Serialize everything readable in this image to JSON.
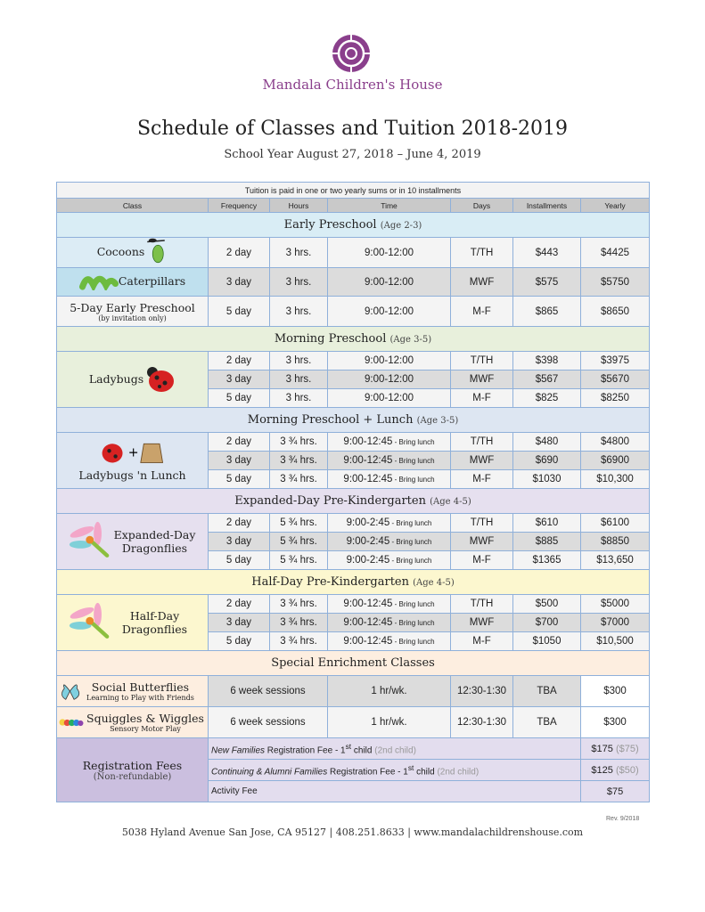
{
  "header": {
    "brand": "Mandala Children's House",
    "title": "Schedule of Classes and Tuition 2018-2019",
    "subtitle": "School Year August 27, 2018 – June 4, 2019",
    "brand_color": "#8a3f8c"
  },
  "table": {
    "caption": "Tuition is paid in one or two yearly sums or in 10 installments",
    "columns": [
      "Class",
      "Frequency",
      "Hours",
      "Time",
      "Days",
      "Installments",
      "Yearly"
    ],
    "sections": [
      {
        "title": "Early Preschool",
        "age": "(Age 2-3)",
        "color": "#d9edf5",
        "classes": [
          {
            "name": "Cocoons",
            "icon": "cocoon-icon",
            "color": "#dcecf5",
            "rows": [
              [
                "2 day",
                "3 hrs.",
                "9:00-12:00",
                "T/TH",
                "$443",
                "$4425"
              ]
            ]
          },
          {
            "name": "Caterpillars",
            "icon": "caterpillar-icon",
            "color": "#bfe0ee",
            "rows": [
              [
                "3 day",
                "3 hrs.",
                "9:00-12:00",
                "MWF",
                "$575",
                "$5750"
              ]
            ]
          },
          {
            "name": "5-Day Early Preschool",
            "note": "(by invitation only)",
            "color": "#f4f4f4",
            "rows": [
              [
                "5 day",
                "3 hrs.",
                "9:00-12:00",
                "M-F",
                "$865",
                "$8650"
              ]
            ]
          }
        ]
      },
      {
        "title": "Morning Preschool",
        "age": "(Age 3-5)",
        "color": "#e8f0dc",
        "classes": [
          {
            "name": "Ladybugs",
            "icon": "ladybug-icon",
            "color": "#e8f0dc",
            "rows": [
              [
                "2 day",
                "3 hrs.",
                "9:00-12:00",
                "T/TH",
                "$398",
                "$3975"
              ],
              [
                "3 day",
                "3 hrs.",
                "9:00-12:00",
                "MWF",
                "$567",
                "$5670"
              ],
              [
                "5 day",
                "3 hrs.",
                "9:00-12:00",
                "M-F",
                "$825",
                "$8250"
              ]
            ]
          }
        ]
      },
      {
        "title": "Morning Preschool + Lunch",
        "age": "(Age 3-5)",
        "color": "#dde6f2",
        "classes": [
          {
            "name": "Ladybugs 'n Lunch",
            "icon": "ladybug-lunch-icon",
            "color": "#dde6f2",
            "rows": [
              [
                "2 day",
                "3 ¾ hrs.",
                "9:00-12:45",
                "T/TH",
                "$480",
                "$4800"
              ],
              [
                "3 day",
                "3 ¾ hrs.",
                "9:00-12:45",
                "MWF",
                "$690",
                "$6900"
              ],
              [
                "5 day",
                "3 ¾ hrs.",
                "9:00-12:45",
                "M-F",
                "$1030",
                "$10,300"
              ]
            ]
          }
        ]
      },
      {
        "title": "Expanded-Day Pre-Kindergarten",
        "age": "(Age 4-5)",
        "color": "#e6e0ef",
        "classes": [
          {
            "name": "Expanded-Day Dragonflies",
            "icon": "dragonfly-icon",
            "color": "#e6e0ef",
            "rows": [
              [
                "2 day",
                "5 ¾ hrs.",
                "9:00-2:45",
                "T/TH",
                "$610",
                "$6100"
              ],
              [
                "3 day",
                "5 ¾ hrs.",
                "9:00-2:45",
                "MWF",
                "$885",
                "$8850"
              ],
              [
                "5 day",
                "5 ¾ hrs.",
                "9:00-2:45",
                "M-F",
                "$1365",
                "$13,650"
              ]
            ]
          }
        ]
      },
      {
        "title": "Half-Day Pre-Kindergarten",
        "age": "(Age 4-5)",
        "color": "#fcf7cf",
        "classes": [
          {
            "name": "Half-Day Dragonflies",
            "icon": "dragonfly-icon",
            "color": "#fcf7cf",
            "rows": [
              [
                "2 day",
                "3 ¾ hrs.",
                "9:00-12:45",
                "T/TH",
                "$500",
                "$5000"
              ],
              [
                "3 day",
                "3 ¾ hrs.",
                "9:00-12:45",
                "MWF",
                "$700",
                "$7000"
              ],
              [
                "5 day",
                "3 ¾ hrs.",
                "9:00-12:45",
                "M-F",
                "$1050",
                "$10,500"
              ]
            ]
          }
        ]
      }
    ],
    "lunch_note": "- Bring lunch",
    "enrichment": {
      "title": "Special Enrichment Classes",
      "color": "#fdeee0",
      "classes": [
        {
          "name": "Social Butterflies",
          "sub": "Learning to Play with Friends",
          "icon": "butterfly-icon",
          "cells": [
            "6 week sessions",
            "1 hr/wk.",
            "12:30-1:30",
            "TBA",
            "$300"
          ]
        },
        {
          "name": "Squiggles & Wiggles",
          "sub": "Sensory Motor Play",
          "icon": "rainbow-caterpillar-icon",
          "cells": [
            "6 week sessions",
            "1 hr/wk.",
            "12:30-1:30",
            "TBA",
            "$300"
          ]
        }
      ]
    },
    "registration": {
      "title": "Registration Fees",
      "note": "(Non-refundable)",
      "rows": [
        {
          "em": "New Families",
          "text": " Registration Fee - 1",
          "sup": "st",
          "after": " child ",
          "second": "(2nd child)",
          "amount": "$175",
          "amount2": "($75)"
        },
        {
          "em": "Continuing & Alumni Families",
          "text": " Registration Fee - 1",
          "sup": "st",
          "after": " child ",
          "second": "(2nd child)",
          "amount": "$125",
          "amount2": "($50)"
        },
        {
          "em": "",
          "text": "Activity Fee",
          "sup": "",
          "after": "",
          "second": "",
          "amount": "$75",
          "amount2": ""
        }
      ]
    }
  },
  "footer": {
    "address": "5038 Hyland Avenue San Jose, CA 95127 | 408.251.8633 | www.mandalachildrenshouse.com",
    "rev": "Rev. 9/2018"
  }
}
